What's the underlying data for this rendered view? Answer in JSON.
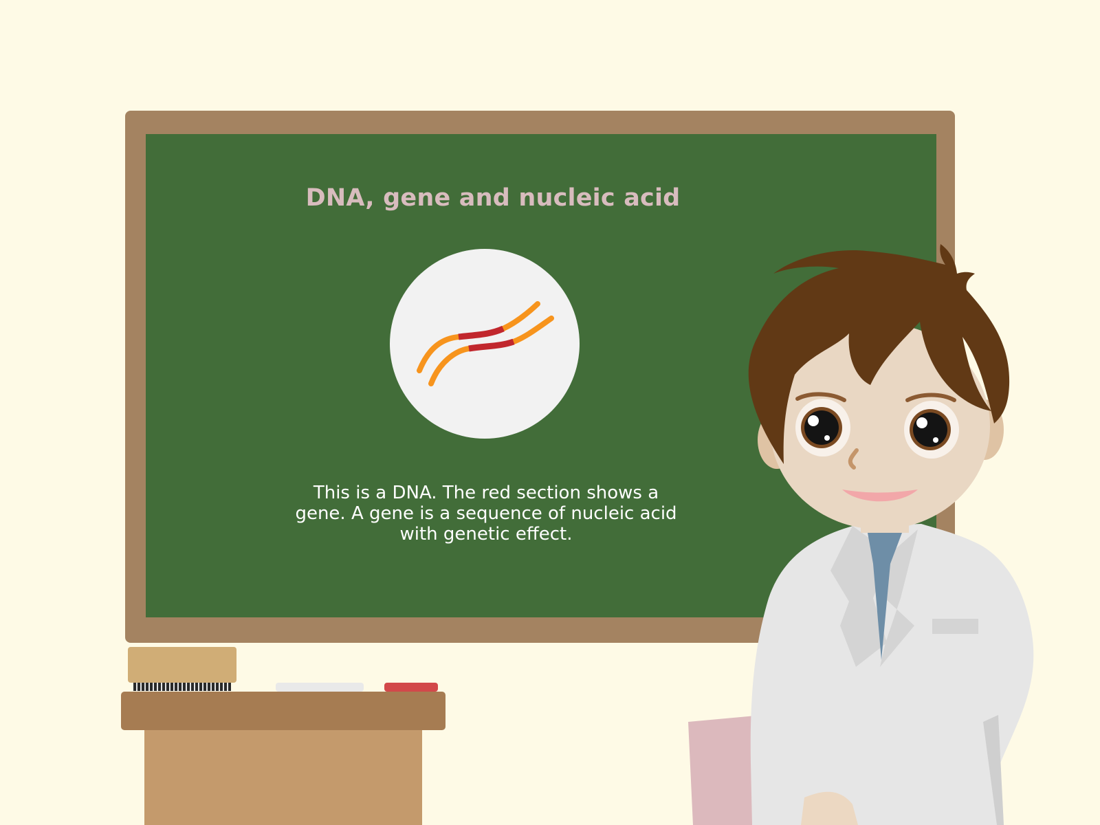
{
  "board": {
    "title": "DNA, gene and nucleic acid",
    "caption": "This is a DNA. The red section shows a gene. A gene is a sequence of nucleic acid with genetic effect."
  },
  "colors": {
    "background": "#fefae6",
    "board_frame": "#a48361",
    "board_surface": "#426d39",
    "title": "#d8bcbe",
    "dna_strand": "#f7941d",
    "gene_section": "#c1272d",
    "hair": "#613915",
    "lab_coat": "#e6e6e6",
    "folder": "#dcb9bd"
  },
  "icons": {
    "dna": "dna-strand-icon"
  }
}
